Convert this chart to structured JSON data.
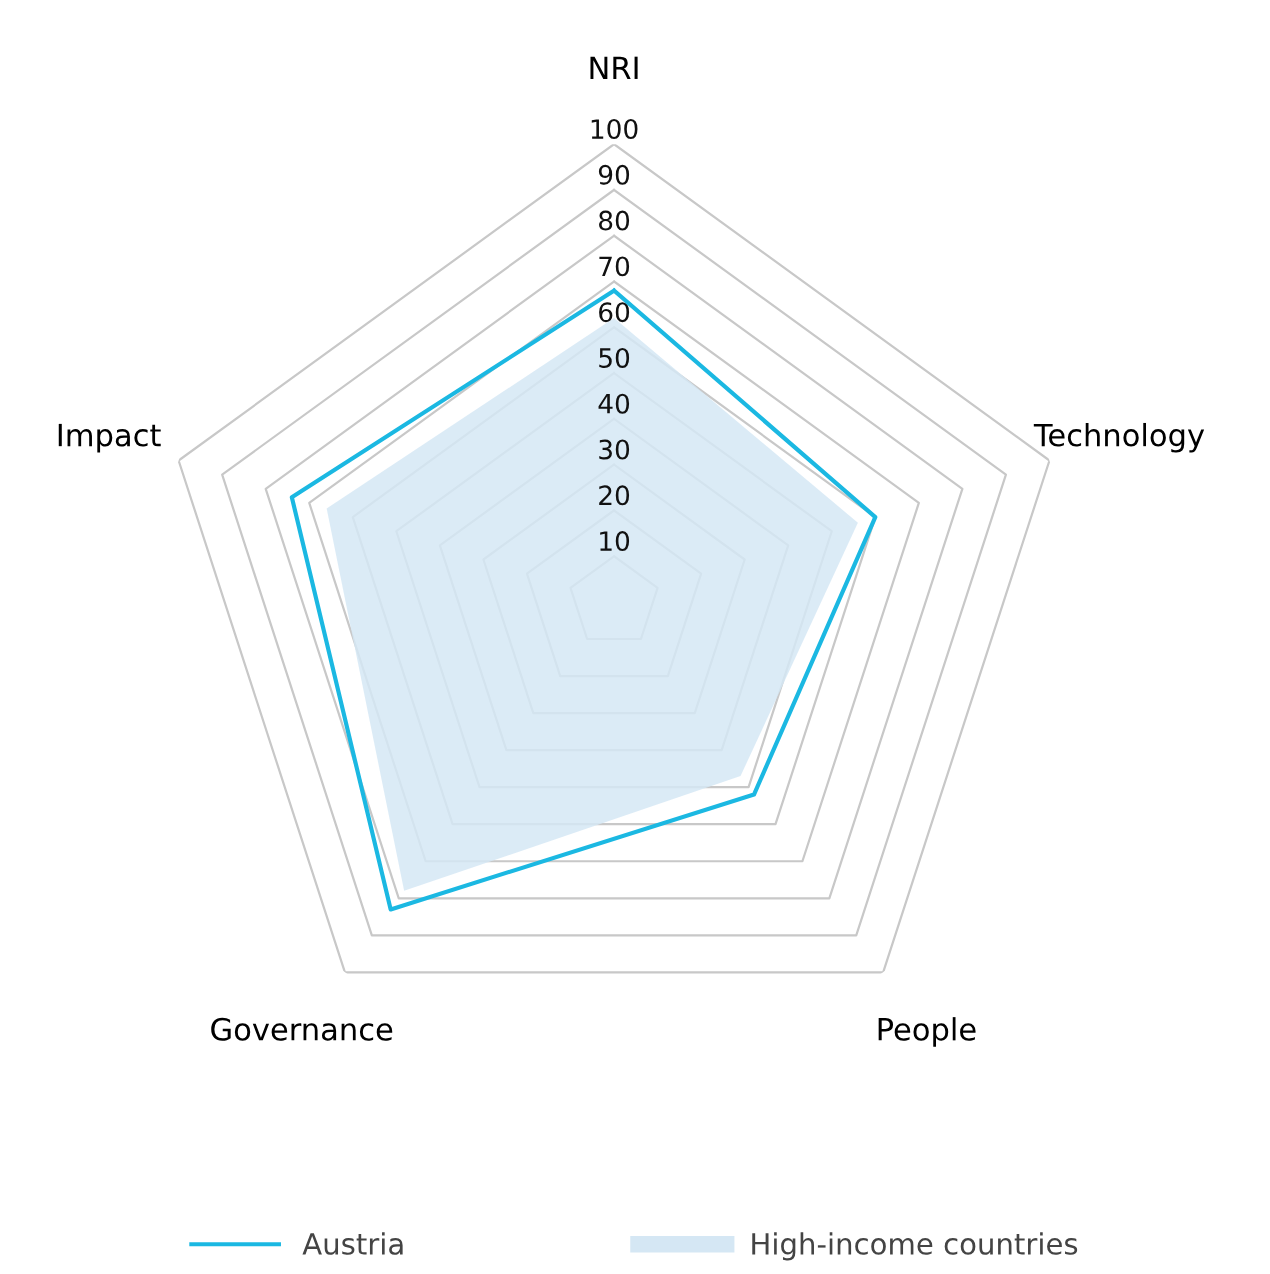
{
  "chart_data": {
    "type": "radar",
    "categories": [
      "NRI",
      "Technology",
      "People",
      "Governance",
      "Impact"
    ],
    "series": [
      {
        "name": "Austria",
        "color": "#1bb8e2",
        "values": [
          68,
          60,
          52,
          83,
          74
        ]
      },
      {
        "name": "High-income countries",
        "color": "#d5e7f4",
        "type": "area",
        "values": [
          62,
          56,
          47,
          78,
          66
        ]
      }
    ],
    "ylim": [
      0,
      100
    ],
    "yticks": [
      10,
      20,
      30,
      40,
      50,
      60,
      70,
      80,
      90,
      100
    ],
    "grid": true,
    "legend": "bottom"
  }
}
